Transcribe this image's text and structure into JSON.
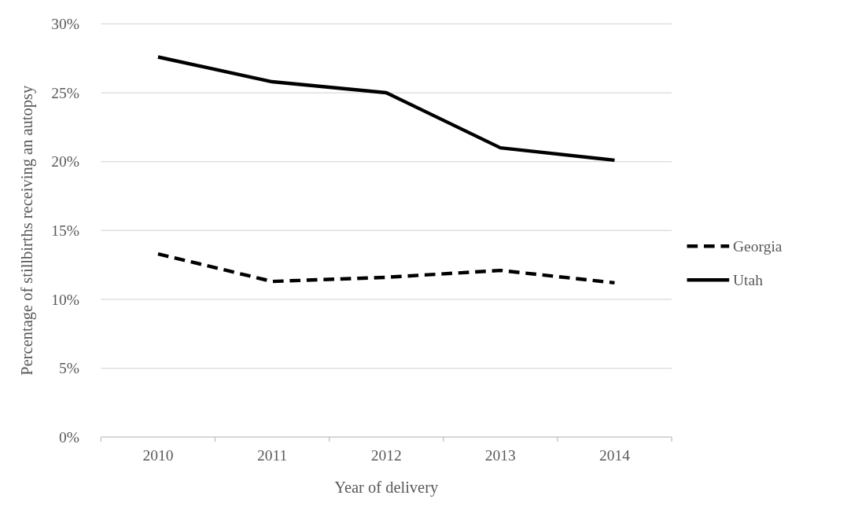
{
  "chart_data": {
    "type": "line",
    "xlabel": "Year of delivery",
    "ylabel": "Percentage of stillbirths receiving an autopsy",
    "categories": [
      "2010",
      "2011",
      "2012",
      "2013",
      "2014"
    ],
    "series": [
      {
        "name": "Georgia",
        "color": "#000000",
        "line_style": "dashed",
        "values": [
          13.3,
          11.3,
          11.6,
          12.1,
          11.2
        ]
      },
      {
        "name": "Utah",
        "color": "#000000",
        "line_style": "solid",
        "values": [
          27.6,
          25.8,
          25.0,
          21.0,
          20.1
        ]
      }
    ],
    "ylim": [
      0,
      30
    ],
    "yticks": [
      {
        "value": 0,
        "label": "0%"
      },
      {
        "value": 5,
        "label": "5%"
      },
      {
        "value": 10,
        "label": "10%"
      },
      {
        "value": 15,
        "label": "15%"
      },
      {
        "value": 20,
        "label": "20%"
      },
      {
        "value": 25,
        "label": "25%"
      },
      {
        "value": 30,
        "label": "30%"
      }
    ],
    "grid": "y",
    "legend": "right"
  }
}
